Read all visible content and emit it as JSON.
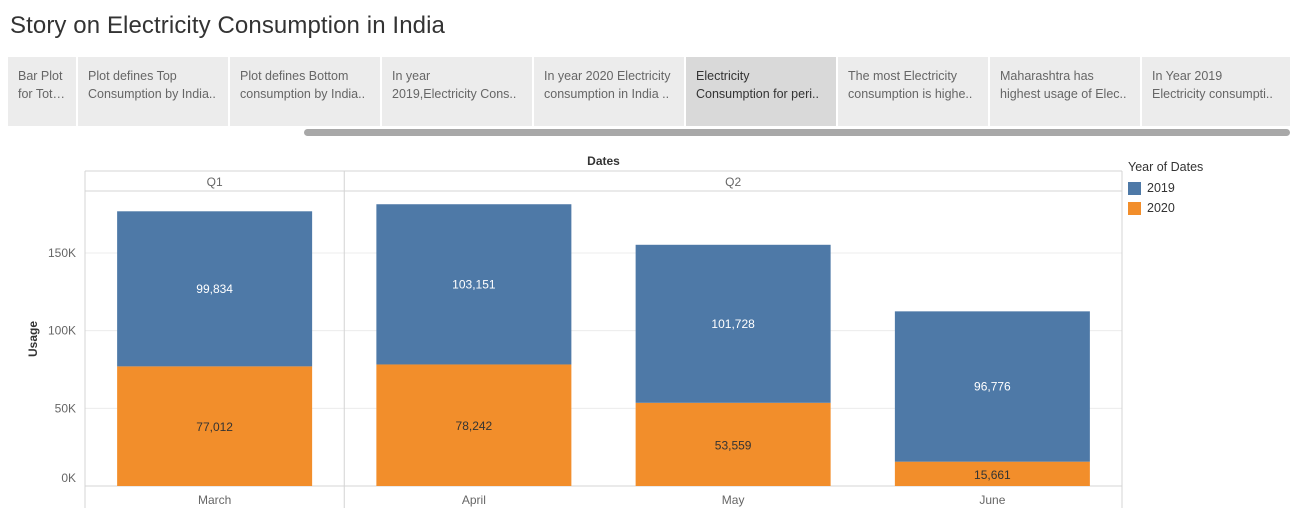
{
  "story_title": "Story on Electricity Consumption in India",
  "nav_points": [
    {
      "line1": "Bar Plot",
      "line2": "for Total ..",
      "active": false
    },
    {
      "line1": "Plot defines Top",
      "line2": "Consumption by India..",
      "active": false
    },
    {
      "line1": "Plot defines Bottom",
      "line2": "consumption by India..",
      "active": false
    },
    {
      "line1": "In year",
      "line2": "2019,Electricity Cons..",
      "active": false
    },
    {
      "line1": "In year 2020 Electricity",
      "line2": "consumption in India ..",
      "active": false
    },
    {
      "line1": "Electricity",
      "line2": "Consumption for peri..",
      "active": true
    },
    {
      "line1": "The most Electricity",
      "line2": "consumption is highe..",
      "active": false
    },
    {
      "line1": "Maharashtra has",
      "line2": "highest usage of Elec..",
      "active": false
    },
    {
      "line1": "In Year 2019",
      "line2": "Electricity consumpti..",
      "active": false
    }
  ],
  "colors": {
    "s2019": "#4e79a7",
    "s2020": "#f28e2b",
    "grid": "#ececec",
    "axis": "#d4d4d4"
  },
  "chart_data": {
    "type": "bar",
    "stacked": true,
    "column_header": "Dates",
    "groups": [
      {
        "label": "Q1",
        "categories": [
          "March"
        ]
      },
      {
        "label": "Q2",
        "categories": [
          "April",
          "May",
          "June"
        ]
      }
    ],
    "categories": [
      "March",
      "April",
      "May",
      "June"
    ],
    "series": [
      {
        "name": "2020",
        "values": [
          77012,
          78242,
          53559,
          15661
        ]
      },
      {
        "name": "2019",
        "values": [
          99834,
          103151,
          101728,
          96776
        ]
      }
    ],
    "ylabel": "Usage",
    "yticks": [
      0,
      50000,
      100000,
      150000
    ],
    "ytick_labels": [
      "0K",
      "50K",
      "100K",
      "150K"
    ],
    "ylim": [
      0,
      188000
    ],
    "legend": {
      "title": "Year of Dates",
      "items": [
        "2019",
        "2020"
      ],
      "position": "right"
    }
  }
}
